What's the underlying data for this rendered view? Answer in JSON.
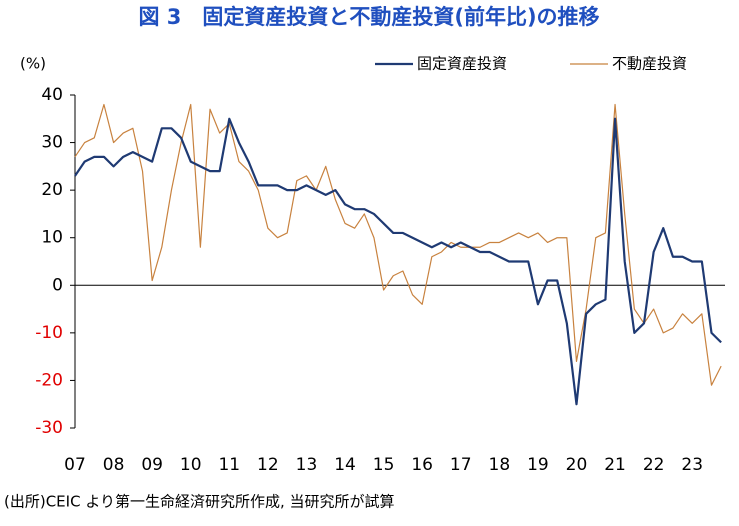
{
  "chart_data": {
    "type": "line",
    "title": "図 3　固定資産投資と不動産投資(前年比)の推移",
    "y_label": "(%)",
    "source": "(出所)CEIC より第一生命経済研究所作成, 当研究所が試算",
    "x": [
      2007,
      2007.25,
      2007.5,
      2007.75,
      2008,
      2008.25,
      2008.5,
      2008.75,
      2009,
      2009.25,
      2009.5,
      2009.75,
      2010,
      2010.25,
      2010.5,
      2010.75,
      2011,
      2011.25,
      2011.5,
      2011.75,
      2012,
      2012.25,
      2012.5,
      2012.75,
      2013,
      2013.25,
      2013.5,
      2013.75,
      2014,
      2014.25,
      2014.5,
      2014.75,
      2015,
      2015.25,
      2015.5,
      2015.75,
      2016,
      2016.25,
      2016.5,
      2016.75,
      2017,
      2017.25,
      2017.5,
      2017.75,
      2018,
      2018.25,
      2018.5,
      2018.75,
      2019,
      2019.25,
      2019.5,
      2019.75,
      2020,
      2020.25,
      2020.5,
      2020.75,
      2021,
      2021.25,
      2021.5,
      2021.75,
      2022,
      2022.25,
      2022.5,
      2022.75,
      2023,
      2023.25,
      2023.5,
      2023.75
    ],
    "series": [
      {
        "name": "固定資産投資",
        "color": "#1f3a73",
        "width": 2.2,
        "values": [
          23,
          26,
          27,
          27,
          25,
          27,
          28,
          27,
          26,
          33,
          33,
          31,
          26,
          25,
          24,
          24,
          35,
          30,
          26,
          21,
          21,
          21,
          20,
          20,
          21,
          20,
          19,
          20,
          17,
          16,
          16,
          15,
          13,
          11,
          11,
          10,
          9,
          8,
          9,
          8,
          9,
          8,
          7,
          7,
          6,
          5,
          5,
          5,
          -4,
          1,
          1,
          -8,
          -25,
          -6,
          -4,
          -3,
          35,
          5,
          -10,
          -8,
          7,
          12,
          6,
          6,
          5,
          5,
          -10,
          -12
        ]
      },
      {
        "name": "不動産投資",
        "color": "#c8823f",
        "width": 1.2,
        "values": [
          27,
          30,
          31,
          38,
          30,
          32,
          33,
          24,
          1,
          8,
          20,
          30,
          38,
          8,
          37,
          32,
          34,
          26,
          24,
          20,
          12,
          10,
          11,
          22,
          23,
          20,
          25,
          18,
          13,
          12,
          15,
          10,
          -1,
          2,
          3,
          -2,
          -4,
          6,
          7,
          9,
          8,
          8,
          8,
          9,
          9,
          10,
          11,
          10,
          11,
          9,
          10,
          10,
          -16,
          -5,
          10,
          11,
          38,
          15,
          -5,
          -8,
          -5,
          -10,
          -9,
          -6,
          -8,
          -6,
          -21,
          -17
        ]
      }
    ],
    "xlim": [
      2007,
      2023.85
    ],
    "xticks": [
      {
        "value": 2007,
        "label": "07"
      },
      {
        "value": 2008,
        "label": "08"
      },
      {
        "value": 2009,
        "label": "09"
      },
      {
        "value": 2010,
        "label": "10"
      },
      {
        "value": 2011,
        "label": "11"
      },
      {
        "value": 2012,
        "label": "12"
      },
      {
        "value": 2013,
        "label": "13"
      },
      {
        "value": 2014,
        "label": "14"
      },
      {
        "value": 2015,
        "label": "15"
      },
      {
        "value": 2016,
        "label": "16"
      },
      {
        "value": 2017,
        "label": "17"
      },
      {
        "value": 2018,
        "label": "18"
      },
      {
        "value": 2019,
        "label": "19"
      },
      {
        "value": 2020,
        "label": "20"
      },
      {
        "value": 2021,
        "label": "21"
      },
      {
        "value": 2022,
        "label": "22"
      },
      {
        "value": 2023,
        "label": "23"
      }
    ],
    "ylim": [
      -30,
      40
    ],
    "yticks": [
      -30,
      -20,
      -10,
      0,
      10,
      20,
      30,
      40
    ],
    "negative_tick_color": "#e00000",
    "title_color": "#1f4fbf"
  }
}
